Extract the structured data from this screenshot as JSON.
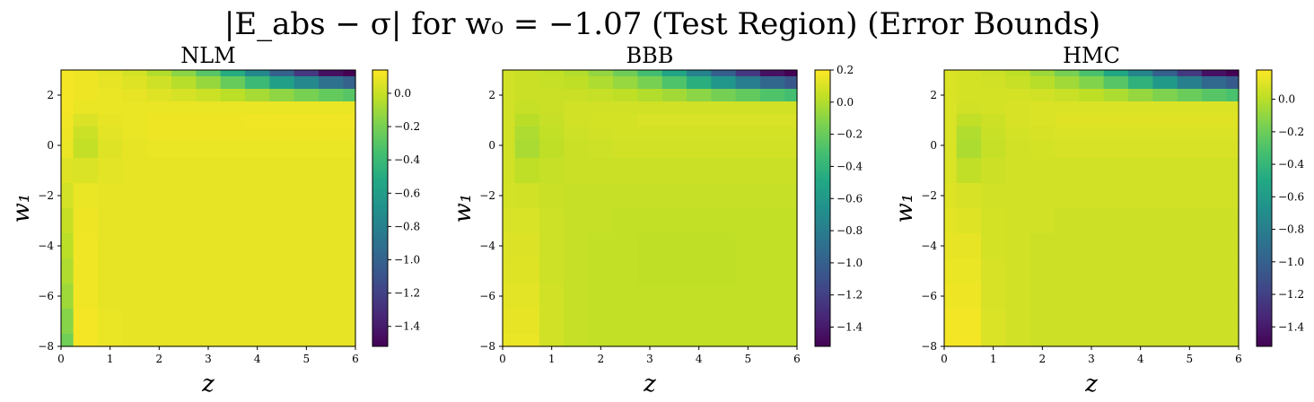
{
  "figure": {
    "title": "|E_abs − σ| for w₀ = −1.07 (Test Region) (Error Bounds)"
  },
  "chart_data": [
    {
      "type": "heatmap",
      "title": "NLM",
      "xlabel": "z",
      "ylabel": "w₁",
      "xlim": [
        0,
        6
      ],
      "ylim": [
        -8,
        3
      ],
      "x_ticks": [
        0,
        1,
        2,
        3,
        4,
        5,
        6
      ],
      "y_ticks": [
        -8,
        -6,
        -4,
        -2,
        0,
        2
      ],
      "colormap": "viridis",
      "color_range": [
        -1.52,
        0.14
      ],
      "colorbar_ticks": [
        0.0,
        -0.2,
        -0.4,
        -0.6,
        -0.8,
        -1.0,
        -1.2,
        -1.4
      ],
      "x_values": [
        0.0,
        0.5,
        1.0,
        1.5,
        2.0,
        2.5,
        3.0,
        3.5,
        4.0,
        4.5,
        5.0,
        5.5,
        6.0
      ],
      "y_values": [
        3.0,
        2.5,
        2.0,
        1.5,
        1.0,
        0.5,
        0.0,
        -1.0,
        -2.0,
        -3.0,
        -4.0,
        -5.0,
        -6.0,
        -7.0,
        -8.0
      ],
      "values": [
        [
          0.12,
          0.1,
          0.07,
          0.03,
          -0.05,
          -0.15,
          -0.3,
          -0.5,
          -0.75,
          -1.0,
          -1.25,
          -1.45,
          -1.52
        ],
        [
          0.12,
          0.1,
          0.08,
          0.06,
          0.02,
          -0.04,
          -0.12,
          -0.25,
          -0.4,
          -0.58,
          -0.75,
          -0.9,
          -1.0
        ],
        [
          0.12,
          0.1,
          0.09,
          0.08,
          0.06,
          0.04,
          0.01,
          -0.03,
          -0.08,
          -0.14,
          -0.2,
          -0.26,
          -0.3
        ],
        [
          0.12,
          0.09,
          0.09,
          0.09,
          0.09,
          0.09,
          0.09,
          0.09,
          0.09,
          0.09,
          0.09,
          0.09,
          0.09
        ],
        [
          0.11,
          0.05,
          0.08,
          0.09,
          0.1,
          0.1,
          0.1,
          0.1,
          0.11,
          0.11,
          0.11,
          0.11,
          0.11
        ],
        [
          0.1,
          0.01,
          0.07,
          0.09,
          0.1,
          0.1,
          0.1,
          0.1,
          0.1,
          0.1,
          0.1,
          0.1,
          0.1
        ],
        [
          0.09,
          -0.01,
          0.06,
          0.08,
          0.09,
          0.09,
          0.09,
          0.09,
          0.09,
          0.09,
          0.09,
          0.09,
          0.09
        ],
        [
          0.06,
          0.05,
          0.07,
          0.08,
          0.08,
          0.08,
          0.08,
          0.08,
          0.08,
          0.08,
          0.08,
          0.08,
          0.08
        ],
        [
          0.03,
          0.09,
          0.08,
          0.08,
          0.08,
          0.08,
          0.08,
          0.08,
          0.08,
          0.08,
          0.08,
          0.08,
          0.08
        ],
        [
          0.0,
          0.1,
          0.08,
          0.08,
          0.08,
          0.08,
          0.08,
          0.08,
          0.08,
          0.08,
          0.08,
          0.08,
          0.08
        ],
        [
          -0.03,
          0.11,
          0.08,
          0.08,
          0.08,
          0.08,
          0.08,
          0.08,
          0.08,
          0.08,
          0.08,
          0.08,
          0.08
        ],
        [
          -0.06,
          0.11,
          0.08,
          0.08,
          0.08,
          0.08,
          0.08,
          0.08,
          0.08,
          0.08,
          0.08,
          0.08,
          0.08
        ],
        [
          -0.1,
          0.11,
          0.08,
          0.08,
          0.08,
          0.08,
          0.08,
          0.08,
          0.08,
          0.08,
          0.08,
          0.08,
          0.08
        ],
        [
          -0.16,
          0.12,
          0.09,
          0.08,
          0.08,
          0.08,
          0.08,
          0.08,
          0.08,
          0.08,
          0.08,
          0.08,
          0.08
        ],
        [
          -0.22,
          0.12,
          0.09,
          0.08,
          0.08,
          0.08,
          0.08,
          0.08,
          0.08,
          0.08,
          0.08,
          0.08,
          0.08
        ]
      ]
    },
    {
      "type": "heatmap",
      "title": "BBB",
      "xlabel": "z",
      "ylabel": "w₁",
      "xlim": [
        0,
        6
      ],
      "ylim": [
        -8,
        3
      ],
      "x_ticks": [
        0,
        1,
        2,
        3,
        4,
        5,
        6
      ],
      "y_ticks": [
        -8,
        -6,
        -4,
        -2,
        0,
        2
      ],
      "colormap": "viridis",
      "color_range": [
        -1.52,
        0.2
      ],
      "colorbar_ticks": [
        0.2,
        0.0,
        -0.2,
        -0.4,
        -0.6,
        -0.8,
        -1.0,
        -1.2,
        -1.4
      ],
      "x_values": [
        0.0,
        0.5,
        1.0,
        1.5,
        2.0,
        2.5,
        3.0,
        3.5,
        4.0,
        4.5,
        5.0,
        5.5,
        6.0
      ],
      "y_values": [
        3.0,
        2.5,
        2.0,
        1.5,
        1.0,
        0.5,
        0.0,
        -1.0,
        -2.0,
        -3.0,
        -4.0,
        -5.0,
        -6.0,
        -7.0,
        -8.0
      ],
      "values": [
        [
          0.08,
          0.06,
          0.04,
          0.0,
          -0.08,
          -0.18,
          -0.32,
          -0.52,
          -0.76,
          -1.0,
          -1.24,
          -1.44,
          -1.52
        ],
        [
          0.08,
          0.06,
          0.05,
          0.03,
          -0.01,
          -0.07,
          -0.15,
          -0.28,
          -0.44,
          -0.62,
          -0.8,
          -0.95,
          -1.05
        ],
        [
          0.08,
          0.06,
          0.06,
          0.06,
          0.05,
          0.03,
          0.0,
          -0.04,
          -0.1,
          -0.16,
          -0.22,
          -0.28,
          -0.32
        ],
        [
          0.08,
          0.05,
          0.06,
          0.08,
          0.08,
          0.08,
          0.08,
          0.08,
          0.08,
          0.08,
          0.08,
          0.08,
          0.08
        ],
        [
          0.08,
          0.02,
          0.05,
          0.08,
          0.09,
          0.09,
          0.1,
          0.1,
          0.1,
          0.1,
          0.1,
          0.1,
          0.1
        ],
        [
          0.08,
          -0.01,
          0.04,
          0.07,
          0.08,
          0.09,
          0.09,
          0.09,
          0.09,
          0.09,
          0.09,
          0.09,
          0.09
        ],
        [
          0.08,
          -0.02,
          0.03,
          0.06,
          0.07,
          0.08,
          0.08,
          0.08,
          0.08,
          0.08,
          0.08,
          0.08,
          0.08
        ],
        [
          0.08,
          0.03,
          0.05,
          0.06,
          0.06,
          0.06,
          0.06,
          0.06,
          0.06,
          0.06,
          0.06,
          0.06,
          0.06
        ],
        [
          0.09,
          0.08,
          0.06,
          0.05,
          0.05,
          0.05,
          0.05,
          0.05,
          0.05,
          0.05,
          0.05,
          0.05,
          0.05
        ],
        [
          0.1,
          0.1,
          0.07,
          0.05,
          0.05,
          0.04,
          0.04,
          0.04,
          0.04,
          0.04,
          0.04,
          0.04,
          0.04
        ],
        [
          0.11,
          0.11,
          0.07,
          0.05,
          0.04,
          0.04,
          0.03,
          0.03,
          0.03,
          0.03,
          0.04,
          0.04,
          0.04
        ],
        [
          0.12,
          0.12,
          0.07,
          0.05,
          0.04,
          0.04,
          0.03,
          0.03,
          0.03,
          0.03,
          0.04,
          0.04,
          0.04
        ],
        [
          0.13,
          0.13,
          0.08,
          0.05,
          0.04,
          0.04,
          0.04,
          0.04,
          0.04,
          0.04,
          0.04,
          0.04,
          0.04
        ],
        [
          0.14,
          0.14,
          0.08,
          0.05,
          0.04,
          0.04,
          0.04,
          0.04,
          0.04,
          0.04,
          0.04,
          0.04,
          0.04
        ],
        [
          0.15,
          0.15,
          0.08,
          0.05,
          0.04,
          0.04,
          0.04,
          0.04,
          0.04,
          0.04,
          0.04,
          0.04,
          0.04
        ]
      ]
    },
    {
      "type": "heatmap",
      "title": "HMC",
      "xlabel": "z",
      "ylabel": "w₁",
      "xlim": [
        0,
        6
      ],
      "ylim": [
        -8,
        3
      ],
      "x_ticks": [
        0,
        1,
        2,
        3,
        4,
        5,
        6
      ],
      "y_ticks": [
        -8,
        -6,
        -4,
        -2,
        0,
        2
      ],
      "colormap": "viridis",
      "color_range": [
        -1.52,
        0.18
      ],
      "colorbar_ticks": [
        0.0,
        -0.2,
        -0.4,
        -0.6,
        -0.8,
        -1.0,
        -1.2,
        -1.4
      ],
      "x_values": [
        0.0,
        0.5,
        1.0,
        1.5,
        2.0,
        2.5,
        3.0,
        3.5,
        4.0,
        4.5,
        5.0,
        5.5,
        6.0
      ],
      "y_values": [
        3.0,
        2.5,
        2.0,
        1.5,
        1.0,
        0.5,
        0.0,
        -1.0,
        -2.0,
        -3.0,
        -4.0,
        -5.0,
        -6.0,
        -7.0,
        -8.0
      ],
      "values": [
        [
          0.09,
          0.07,
          0.05,
          0.01,
          -0.07,
          -0.17,
          -0.31,
          -0.51,
          -0.75,
          -1.0,
          -1.24,
          -1.44,
          -1.52
        ],
        [
          0.09,
          0.07,
          0.06,
          0.04,
          0.0,
          -0.06,
          -0.14,
          -0.27,
          -0.43,
          -0.61,
          -0.79,
          -0.94,
          -1.04
        ],
        [
          0.09,
          0.07,
          0.07,
          0.07,
          0.06,
          0.04,
          0.01,
          -0.03,
          -0.09,
          -0.15,
          -0.21,
          -0.27,
          -0.31
        ],
        [
          0.09,
          0.06,
          0.07,
          0.08,
          0.09,
          0.09,
          0.09,
          0.09,
          0.09,
          0.09,
          0.09,
          0.09,
          0.09
        ],
        [
          0.09,
          0.02,
          0.05,
          0.08,
          0.09,
          0.1,
          0.1,
          0.1,
          0.1,
          0.1,
          0.1,
          0.1,
          0.1
        ],
        [
          0.09,
          -0.02,
          0.04,
          0.07,
          0.08,
          0.09,
          0.09,
          0.09,
          0.09,
          0.09,
          0.09,
          0.09,
          0.09
        ],
        [
          0.09,
          -0.03,
          0.03,
          0.06,
          0.07,
          0.08,
          0.08,
          0.08,
          0.08,
          0.08,
          0.08,
          0.08,
          0.08
        ],
        [
          0.09,
          0.02,
          0.05,
          0.06,
          0.06,
          0.06,
          0.06,
          0.06,
          0.06,
          0.06,
          0.06,
          0.06,
          0.06
        ],
        [
          0.1,
          0.08,
          0.06,
          0.06,
          0.06,
          0.06,
          0.06,
          0.06,
          0.06,
          0.06,
          0.06,
          0.06,
          0.06
        ],
        [
          0.11,
          0.1,
          0.07,
          0.06,
          0.06,
          0.05,
          0.05,
          0.05,
          0.05,
          0.05,
          0.05,
          0.05,
          0.05
        ],
        [
          0.12,
          0.12,
          0.07,
          0.06,
          0.05,
          0.05,
          0.05,
          0.05,
          0.05,
          0.05,
          0.05,
          0.05,
          0.05
        ],
        [
          0.13,
          0.13,
          0.08,
          0.06,
          0.05,
          0.05,
          0.05,
          0.05,
          0.05,
          0.05,
          0.05,
          0.05,
          0.05
        ],
        [
          0.14,
          0.14,
          0.08,
          0.06,
          0.05,
          0.05,
          0.05,
          0.05,
          0.05,
          0.05,
          0.05,
          0.05,
          0.05
        ],
        [
          0.15,
          0.15,
          0.09,
          0.06,
          0.05,
          0.05,
          0.05,
          0.05,
          0.05,
          0.05,
          0.05,
          0.05,
          0.05
        ],
        [
          0.16,
          0.16,
          0.09,
          0.06,
          0.05,
          0.05,
          0.05,
          0.05,
          0.05,
          0.05,
          0.05,
          0.05,
          0.05
        ]
      ]
    }
  ]
}
